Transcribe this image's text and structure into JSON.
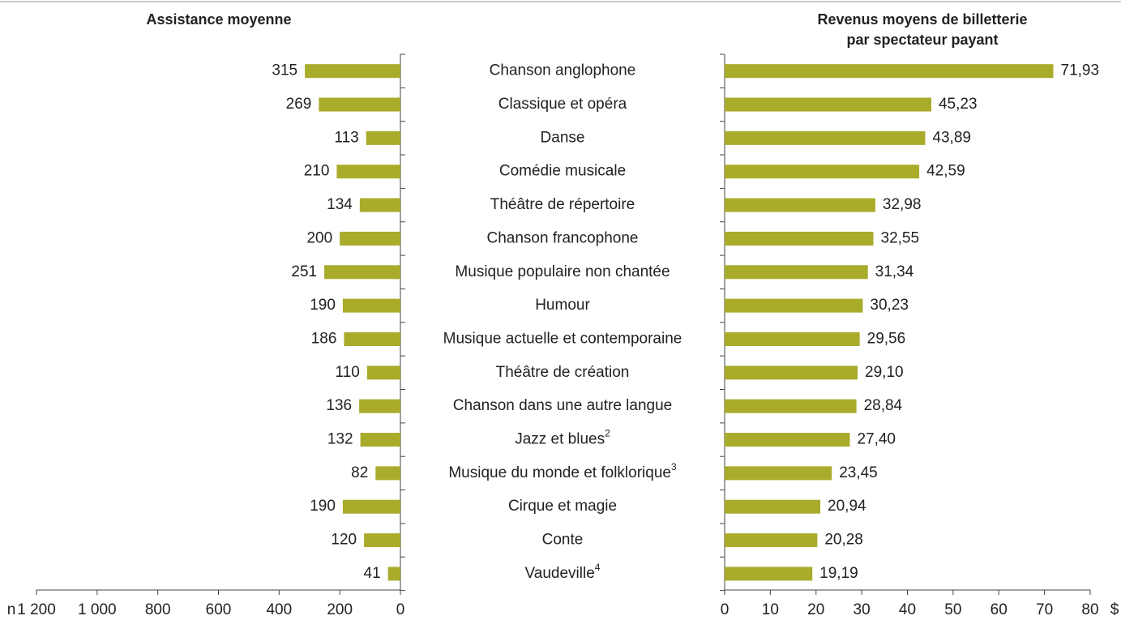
{
  "chart_data": [
    {
      "type": "bar",
      "orientation": "horizontal",
      "title": "Assistance moyenne",
      "x_unit": "n",
      "x_reversed": true,
      "color": "#a9ac2b",
      "categories": [
        "Chanson anglophone",
        "Classique et opéra",
        "Danse",
        "Comédie musicale",
        "Théâtre de répertoire",
        "Chanson francophone",
        "Musique populaire non chantée",
        "Humour",
        "Musique actuelle et contemporaine",
        "Théâtre de création",
        "Chanson dans une autre langue",
        "Jazz et blues",
        "Musique du monde et folklorique",
        "Cirque et magie",
        "Conte",
        "Vaudeville"
      ],
      "category_notes": [
        null,
        null,
        null,
        null,
        null,
        null,
        null,
        null,
        null,
        null,
        null,
        "2",
        "3",
        null,
        null,
        "4"
      ],
      "values": [
        315,
        269,
        113,
        210,
        134,
        200,
        251,
        190,
        186,
        110,
        136,
        132,
        82,
        190,
        120,
        41
      ],
      "xlim": [
        0,
        1200
      ],
      "xticks": [
        0,
        200,
        400,
        600,
        800,
        {
          "value": 1000,
          "label": "1 000"
        },
        {
          "value": 1200,
          "label": "1 200"
        }
      ]
    },
    {
      "type": "bar",
      "orientation": "horizontal",
      "title": [
        "Revenus moyens de billetterie",
        "par spectateur payant"
      ],
      "x_unit": "$",
      "x_reversed": false,
      "color": "#a9ac2b",
      "values": [
        71.93,
        45.23,
        43.89,
        42.59,
        32.98,
        32.55,
        31.34,
        30.23,
        29.56,
        29.1,
        28.84,
        27.4,
        23.45,
        20.94,
        20.28,
        19.19
      ],
      "value_labels": [
        "71,93",
        "45,23",
        "43,89",
        "42,59",
        "32,98",
        "32,55",
        "31,34",
        "30,23",
        "29,56",
        "29,10",
        "28,84",
        "27,40",
        "23,45",
        "20,94",
        "20,28",
        "19,19"
      ],
      "xlim": [
        0,
        80
      ],
      "xticks": [
        0,
        10,
        20,
        30,
        40,
        50,
        60,
        70,
        80
      ]
    }
  ]
}
